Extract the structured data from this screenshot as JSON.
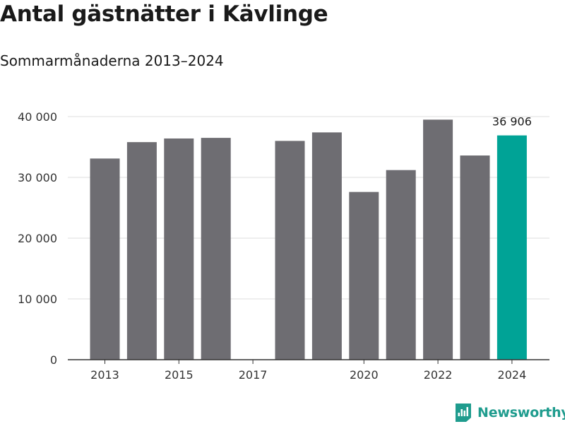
{
  "title": "Antal gästnätter i Kävlinge",
  "subtitle": "Sommarmånaderna 2013–2024",
  "brand": {
    "name": "Newsworthy",
    "color": "#1f9c8e",
    "icon": "newsworthy-logo-icon"
  },
  "colors": {
    "bar": "#6e6d72",
    "highlight": "#00a396",
    "grid": "#dddddd",
    "axis": "#333333"
  },
  "chart_data": {
    "type": "bar",
    "categories": [
      "2013",
      "2014",
      "2015",
      "2016",
      "2017",
      "2018",
      "2019",
      "2020",
      "2021",
      "2022",
      "2023",
      "2024"
    ],
    "values": [
      33100,
      35800,
      36400,
      36500,
      null,
      36000,
      37400,
      27600,
      31200,
      39500,
      33600,
      36906
    ],
    "highlight_index": 11,
    "data_labels": [
      {
        "index": 11,
        "text": "36 906"
      }
    ],
    "x_tick_labels": [
      "2013",
      "2015",
      "2017",
      "2020",
      "2022",
      "2024"
    ],
    "y_ticks": [
      0,
      10000,
      20000,
      30000,
      40000
    ],
    "y_tick_labels": [
      "0",
      "10 000",
      "20 000",
      "30 000",
      "40 000"
    ],
    "ylim": [
      0,
      40000
    ],
    "grid": true,
    "xlabel": "",
    "ylabel": ""
  }
}
